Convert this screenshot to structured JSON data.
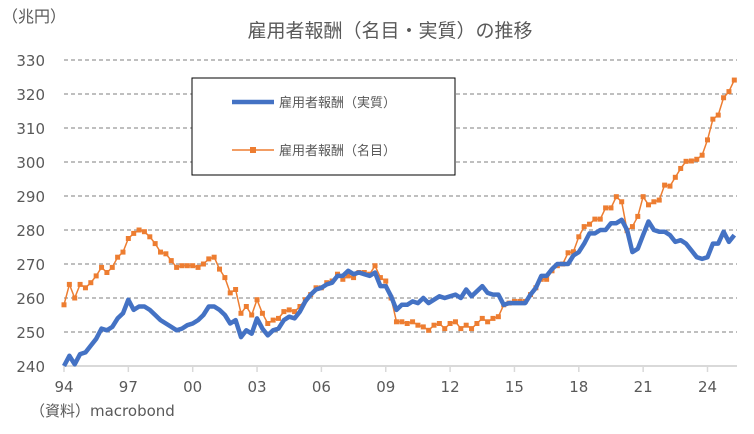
{
  "chart_data": {
    "type": "line",
    "title": "雇用者報酬（名目・実質）の推移",
    "unit_label": "（兆円）",
    "source": "（資料）macrobond",
    "x_start_year": 1994,
    "periods_per_year": 4,
    "ylim": [
      240,
      330
    ],
    "y_ticks": [
      240,
      250,
      260,
      270,
      280,
      290,
      300,
      310,
      320,
      330
    ],
    "x_ticks": [
      {
        "year": 1994,
        "label": "94"
      },
      {
        "year": 1997,
        "label": "97"
      },
      {
        "year": 2000,
        "label": "00"
      },
      {
        "year": 2003,
        "label": "03"
      },
      {
        "year": 2006,
        "label": "06"
      },
      {
        "year": 2009,
        "label": "09"
      },
      {
        "year": 2012,
        "label": "12"
      },
      {
        "year": 2015,
        "label": "15"
      },
      {
        "year": 2018,
        "label": "18"
      },
      {
        "year": 2021,
        "label": "21"
      },
      {
        "year": 2024,
        "label": "24"
      }
    ],
    "grid": "horizontal-dashed",
    "legend_position": "top-left-inside",
    "series": [
      {
        "name": "雇用者報酬（実質）",
        "color": "#4472C4",
        "values": [
          240,
          243,
          240.5,
          243.5,
          244,
          246,
          248,
          251,
          250.5,
          251.5,
          254,
          255.5,
          259.5,
          256.5,
          257.5,
          257.5,
          256.5,
          255,
          253.5,
          252.5,
          251.5,
          250.5,
          251,
          252,
          252.5,
          253.5,
          255,
          257.5,
          257.5,
          256.5,
          255,
          252.5,
          253.5,
          248.5,
          250.5,
          249.5,
          254,
          251,
          249,
          250.5,
          251,
          253.5,
          254.5,
          254,
          256,
          259,
          261,
          262.5,
          263,
          264,
          264.5,
          266.5,
          266.5,
          268,
          267,
          267.5,
          267,
          266.5,
          267.5,
          263.5,
          263.5,
          260.5,
          256.5,
          258,
          258,
          259,
          258.5,
          260,
          258.5,
          259.5,
          260.5,
          260,
          260.5,
          261,
          260,
          262.5,
          260.5,
          262,
          263.5,
          261.5,
          261,
          261,
          258,
          258.5,
          258.5,
          258.5,
          258.5,
          261,
          263,
          266.5,
          266.5,
          268.5,
          270,
          270,
          270,
          272.5,
          273.5,
          276,
          279,
          279,
          280,
          280,
          282,
          282,
          283,
          280,
          273.5,
          274.5,
          278.5,
          282.5,
          280,
          279.5,
          279.5,
          278.5,
          276.5,
          277,
          276,
          274,
          272,
          271.5,
          272,
          276,
          276,
          279.5,
          276.5,
          278.5
        ]
      },
      {
        "name": "雇用者報酬（名目）",
        "color": "#ED7D31",
        "values": [
          258,
          264,
          260,
          264,
          263,
          264.5,
          266.5,
          269,
          267.5,
          269,
          272,
          273.5,
          277.5,
          279,
          280,
          279.5,
          278,
          276,
          273.5,
          273,
          271,
          269,
          269.5,
          269.5,
          269.5,
          269,
          270,
          271.5,
          272,
          268.5,
          266,
          261.5,
          262.5,
          255.5,
          257.5,
          255,
          259.5,
          255.5,
          252.5,
          253.5,
          254,
          256,
          256.5,
          256,
          257.5,
          259.5,
          261,
          263,
          263,
          264.5,
          265,
          267,
          265.5,
          266.5,
          266,
          267.5,
          267.5,
          267,
          269.5,
          266,
          265,
          260,
          253,
          253,
          252.5,
          253,
          252,
          251.5,
          250.5,
          252,
          252.5,
          251,
          252.5,
          253,
          251,
          252,
          251,
          252.5,
          254,
          253,
          254,
          254.5,
          258,
          258.5,
          259,
          259,
          259,
          261,
          263,
          265.5,
          265.5,
          268,
          269.5,
          270,
          273.3,
          273.6,
          278,
          281,
          281.7,
          283.2,
          283.2,
          286.5,
          286.5,
          289.8,
          288.3,
          279.8,
          281,
          284,
          289.8,
          287.4,
          288.3,
          288.8,
          293.2,
          292.9,
          295.5,
          298.1,
          300.2,
          300.3,
          300.8,
          302,
          306.5,
          312.6,
          313.8,
          318.9,
          320.7,
          324.1
        ]
      }
    ]
  }
}
